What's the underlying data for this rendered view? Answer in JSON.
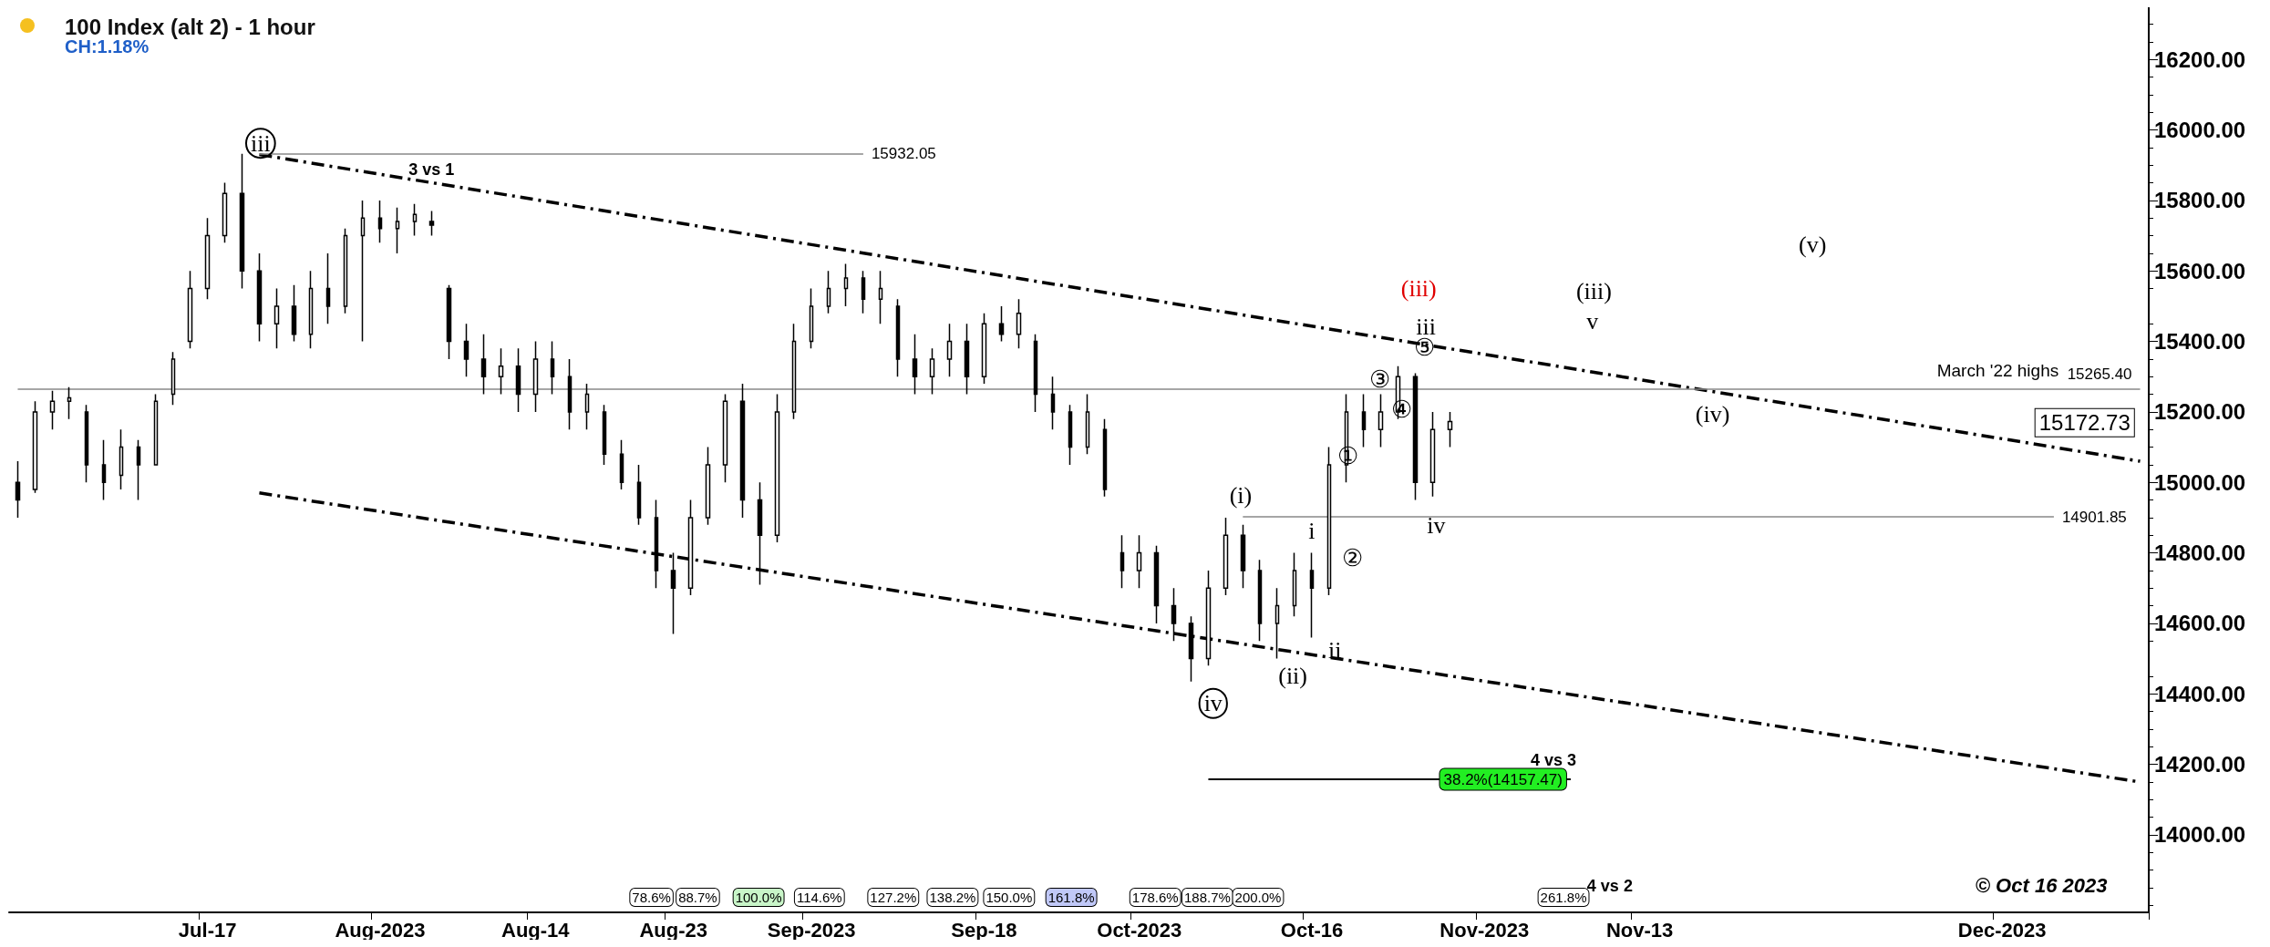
{
  "chart_data": {
    "type": "candlestick",
    "title": "100 Index (alt 2) - 1 hour",
    "subtitle": "CH:1.18%",
    "categories": [
      null,
      null,
      null,
      null,
      null,
      null,
      null,
      null,
      null,
      null,
      null,
      "Jul-17",
      null,
      null,
      null,
      null,
      null,
      null,
      null,
      null,
      null,
      "Aug-2023",
      null,
      null,
      null,
      null,
      null,
      null,
      null,
      null,
      "Aug-14",
      null,
      null,
      null,
      null,
      null,
      null,
      null,
      "Aug-23",
      null,
      null,
      null,
      null,
      null,
      null,
      null,
      "Sep-2023",
      null,
      null,
      null,
      null,
      null,
      null,
      null,
      null,
      null,
      "Sep-18",
      null,
      null,
      null,
      null,
      null,
      null,
      null,
      null,
      "Oct-2023",
      null,
      null,
      null,
      null,
      null,
      null,
      null,
      null,
      null,
      "Oct-16",
      null,
      null,
      null,
      null,
      null,
      null,
      null,
      null,
      null,
      "Nov-2023",
      null,
      null,
      null,
      null,
      null,
      null,
      null,
      null,
      "Nov-13",
      null,
      null,
      null,
      null,
      null,
      null,
      null,
      null,
      null,
      null,
      null,
      null,
      null,
      null,
      null,
      null,
      null,
      null,
      null,
      null,
      "Dec-2023",
      null,
      null,
      null,
      null,
      null,
      null,
      null,
      null
    ],
    "series": [
      {
        "type": "candlestick",
        "color": "#000000",
        "ohlc": [
          [
            15000,
            15060,
            14900,
            14950
          ],
          [
            14980,
            15230,
            14970,
            15200
          ],
          [
            15200,
            15260,
            15150,
            15230
          ],
          [
            15230,
            15270,
            15180,
            15240
          ],
          [
            15200,
            15220,
            15000,
            15050
          ],
          [
            15050,
            15120,
            14950,
            15000
          ],
          [
            15020,
            15150,
            14980,
            15100
          ],
          [
            15100,
            15120,
            14950,
            15050
          ],
          [
            15050,
            15250,
            15050,
            15230
          ],
          [
            15250,
            15370,
            15220,
            15350
          ],
          [
            15400,
            15600,
            15380,
            15550
          ],
          [
            15550,
            15750,
            15520,
            15700
          ],
          [
            15700,
            15850,
            15680,
            15820
          ],
          [
            15820,
            15932.05,
            15550,
            15600
          ],
          [
            15600,
            15650,
            15400,
            15450
          ],
          [
            15450,
            15550,
            15380,
            15500
          ],
          [
            15500,
            15560,
            15400,
            15420
          ],
          [
            15420,
            15600,
            15380,
            15550
          ],
          [
            15550,
            15650,
            15450,
            15500
          ],
          [
            15500,
            15720,
            15480,
            15700
          ],
          [
            15700,
            15800,
            15400,
            15750
          ],
          [
            15750,
            15800,
            15680,
            15720
          ],
          [
            15720,
            15780,
            15650,
            15740
          ],
          [
            15740,
            15790,
            15700,
            15760
          ],
          [
            15740,
            15770,
            15700,
            15730
          ],
          [
            15550,
            15560,
            15350,
            15400
          ],
          [
            15400,
            15450,
            15300,
            15350
          ],
          [
            15350,
            15420,
            15250,
            15300
          ],
          [
            15300,
            15380,
            15250,
            15330
          ],
          [
            15330,
            15380,
            15200,
            15250
          ],
          [
            15250,
            15400,
            15200,
            15350
          ],
          [
            15350,
            15400,
            15250,
            15300
          ],
          [
            15300,
            15350,
            15150,
            15200
          ],
          [
            15200,
            15280,
            15150,
            15250
          ],
          [
            15200,
            15220,
            15050,
            15080
          ],
          [
            15080,
            15120,
            14980,
            15000
          ],
          [
            15000,
            15050,
            14880,
            14900
          ],
          [
            14900,
            14950,
            14700,
            14750
          ],
          [
            14750,
            14800,
            14570,
            14700
          ],
          [
            14700,
            14950,
            14680,
            14900
          ],
          [
            14900,
            15100,
            14880,
            15050
          ],
          [
            15050,
            15250,
            15000,
            15230
          ],
          [
            15230,
            15280,
            14900,
            14950
          ],
          [
            14950,
            15000,
            14710,
            14850
          ],
          [
            14850,
            15250,
            14830,
            15200
          ],
          [
            15200,
            15450,
            15180,
            15400
          ],
          [
            15400,
            15550,
            15380,
            15500
          ],
          [
            15500,
            15600,
            15480,
            15550
          ],
          [
            15550,
            15620,
            15500,
            15580
          ],
          [
            15580,
            15600,
            15480,
            15520
          ],
          [
            15520,
            15600,
            15450,
            15550
          ],
          [
            15500,
            15520,
            15300,
            15350
          ],
          [
            15350,
            15420,
            15250,
            15300
          ],
          [
            15300,
            15380,
            15250,
            15350
          ],
          [
            15350,
            15450,
            15300,
            15400
          ],
          [
            15400,
            15450,
            15250,
            15300
          ],
          [
            15300,
            15480,
            15280,
            15450
          ],
          [
            15450,
            15500,
            15400,
            15420
          ],
          [
            15420,
            15520,
            15380,
            15480
          ],
          [
            15400,
            15420,
            15200,
            15250
          ],
          [
            15250,
            15300,
            15150,
            15200
          ],
          [
            15200,
            15220,
            15050,
            15100
          ],
          [
            15100,
            15250,
            15080,
            15200
          ],
          [
            15150,
            15180,
            14960,
            14980
          ],
          [
            14800,
            14850,
            14700,
            14750
          ],
          [
            14750,
            14850,
            14700,
            14800
          ],
          [
            14800,
            14820,
            14600,
            14650
          ],
          [
            14650,
            14700,
            14550,
            14600
          ],
          [
            14600,
            14620,
            14435,
            14500
          ],
          [
            14500,
            14750,
            14480,
            14700
          ],
          [
            14700,
            14900,
            14680,
            14850
          ],
          [
            14850,
            14880,
            14700,
            14750
          ],
          [
            14750,
            14780,
            14550,
            14600
          ],
          [
            14600,
            14700,
            14500,
            14650
          ],
          [
            14650,
            14800,
            14620,
            14750
          ],
          [
            14750,
            14800,
            14560,
            14700
          ],
          [
            14700,
            15100,
            14680,
            15050
          ],
          [
            15050,
            15250,
            15000,
            15200
          ],
          [
            15200,
            15250,
            15100,
            15150
          ],
          [
            15150,
            15250,
            15100,
            15200
          ],
          [
            15200,
            15330,
            15180,
            15300
          ],
          [
            15300,
            15310,
            14950,
            15000
          ],
          [
            15000,
            15200,
            14960,
            15150
          ],
          [
            15150,
            15200,
            15100,
            15172.73
          ],
          null,
          null,
          null,
          null,
          null,
          null,
          null,
          null,
          null,
          null,
          null,
          null,
          null,
          null,
          null,
          null,
          null,
          null,
          null,
          null,
          null,
          null,
          null,
          null,
          null,
          null,
          null,
          null,
          null,
          null,
          null,
          null,
          null,
          null,
          null,
          null,
          null,
          null,
          null,
          null
        ]
      },
      {
        "type": "line",
        "color": "#000000",
        "line_style": "dashed",
        "values": [
          null,
          null,
          null,
          null,
          null,
          null,
          null,
          null,
          null,
          null,
          null,
          null,
          null,
          null,
          15930,
          null,
          null,
          null,
          null,
          null,
          null,
          null,
          null,
          null,
          null,
          null,
          null,
          null,
          null,
          null,
          null,
          null,
          null,
          null,
          null,
          null,
          null,
          null,
          null,
          null,
          null,
          null,
          null,
          null,
          null,
          null,
          null,
          null,
          null,
          null,
          null,
          null,
          null,
          null,
          null,
          null,
          null,
          null,
          null,
          null,
          null,
          null,
          null,
          null,
          null,
          null,
          null,
          null,
          null,
          null,
          null,
          null,
          null,
          null,
          null,
          null,
          null,
          null,
          null,
          null,
          null,
          null,
          null,
          null,
          null,
          null,
          null,
          null,
          null,
          null,
          null,
          null,
          null,
          null,
          null,
          null,
          null,
          null,
          null,
          null,
          null,
          null,
          null,
          null,
          null,
          null,
          null,
          null,
          null,
          null,
          null,
          null,
          null,
          null,
          null,
          null,
          null,
          null,
          null,
          null,
          null,
          null,
          null,
          15060
        ]
      },
      {
        "type": "line",
        "color": "#000000",
        "line_style": "dashed",
        "values": [
          null,
          null,
          null,
          null,
          null,
          null,
          null,
          null,
          null,
          null,
          null,
          null,
          null,
          null,
          14970,
          null,
          null,
          null,
          null,
          null,
          null,
          null,
          null,
          null,
          null,
          null,
          null,
          null,
          null,
          null,
          null,
          null,
          null,
          null,
          null,
          null,
          null,
          null,
          null,
          null,
          null,
          null,
          null,
          null,
          null,
          null,
          null,
          null,
          null,
          null,
          null,
          null,
          null,
          null,
          null,
          null,
          null,
          null,
          null,
          null,
          null,
          null,
          null,
          null,
          null,
          null,
          null,
          null,
          null,
          null,
          null,
          null,
          null,
          null,
          null,
          null,
          null,
          null,
          null,
          null,
          null,
          null,
          null,
          null,
          null,
          null,
          null,
          null,
          null,
          null,
          null,
          null,
          null,
          null,
          null,
          null,
          null,
          null,
          null,
          null,
          null,
          null,
          null,
          null,
          null,
          null,
          null,
          null,
          null,
          null,
          null,
          null,
          null,
          null,
          null,
          null,
          null,
          null,
          null,
          null,
          null,
          null,
          null,
          14150
        ]
      }
    ],
    "ylim": [
      13780,
      16348
    ],
    "yticks": [
      {
        "value": 14000,
        "label": "14000.00"
      },
      {
        "value": 14200,
        "label": "14200.00"
      },
      {
        "value": 14400,
        "label": "14400.00"
      },
      {
        "value": 14600,
        "label": "14600.00"
      },
      {
        "value": 14800,
        "label": "14800.00"
      },
      {
        "value": 15000,
        "label": "15000.00"
      },
      {
        "value": 15200,
        "label": "15200.00"
      },
      {
        "value": 15400,
        "label": "15400.00"
      },
      {
        "value": 15600,
        "label": "15600.00"
      },
      {
        "value": 15800,
        "label": "15800.00"
      },
      {
        "value": 16000,
        "label": "16000.00"
      },
      {
        "value": 16200,
        "label": "16200.00"
      }
    ],
    "ref_lines": [
      {
        "axis": "y",
        "value": 15932.05,
        "label": "15932.05",
        "color": "#888888"
      },
      {
        "axis": "y",
        "value": 15265.4,
        "label": "15265.40",
        "color": "#888888"
      },
      {
        "axis": "y",
        "value": 14901.85,
        "label": "14901.85",
        "color": "#888888"
      },
      {
        "axis": "y",
        "value": 14157.47,
        "label": "38.2%(14157.47)",
        "color": "#000000"
      }
    ],
    "annotations": [
      "iii",
      "3 vs 1",
      "(iii)",
      "iii",
      "⑤",
      "③",
      "④",
      "①",
      "②",
      "(i)",
      "i",
      "ii",
      "(ii)",
      "iv",
      "iv",
      "(iv)",
      "(iii)",
      "v",
      "(v)",
      "March '22 highs",
      "4 vs 3",
      "78.6%",
      "88.7%",
      "100.0%",
      "114.6%",
      "127.2%",
      "138.2%",
      "150.0%",
      "161.8%",
      "178.6%",
      "188.7%",
      "200.0%",
      "261.8%",
      "4 vs 2",
      "© Oct 16 2023",
      "15172.73"
    ],
    "grid": false
  }
}
